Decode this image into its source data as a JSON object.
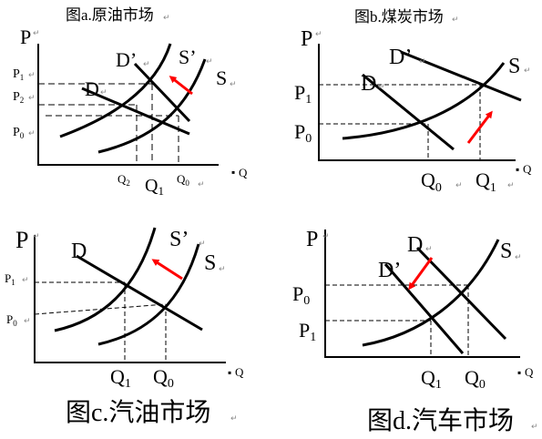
{
  "panels": {
    "a": {
      "title": "图a.原油市场",
      "p_axis": "P",
      "q_axis": "Q",
      "demand": "D",
      "demand_new": "D’",
      "supply": "S",
      "supply_new": "S’",
      "p1": "P",
      "p1_sub": "1",
      "p2": "P",
      "p2_sub": "2",
      "p0": "P",
      "p0_sub": "0",
      "q2": "Q",
      "q2_sub": "2",
      "q1": "Q",
      "q1_sub": "1",
      "q0": "Q",
      "q0_sub": "0"
    },
    "b": {
      "title": "图b.煤炭市场",
      "p_axis": "P",
      "q_axis": "Q",
      "demand": "D",
      "demand_new": "D’",
      "supply": "S",
      "p1": "P",
      "p1_sub": "1",
      "p0": "P",
      "p0_sub": "0",
      "q0": "Q",
      "q0_sub": "0",
      "q1": "Q",
      "q1_sub": "1"
    },
    "c": {
      "title": "图c.汽油市场",
      "p_axis": "P",
      "q_axis": "Q",
      "demand": "D",
      "supply": "S",
      "supply_new": "S’",
      "p1": "P",
      "p1_sub": "1",
      "p0": "P",
      "p0_sub": "0",
      "q1": "Q",
      "q1_sub": "1",
      "q0": "Q",
      "q0_sub": "0"
    },
    "d": {
      "title": "图d.汽车市场",
      "p_axis": "P",
      "q_axis": "Q",
      "demand": "D",
      "demand_new": "D’",
      "supply": "S",
      "p0": "P",
      "p0_sub": "0",
      "p1": "P",
      "p1_sub": "1",
      "q1": "Q",
      "q1_sub": "1",
      "q0": "Q",
      "q0_sub": "0"
    }
  },
  "colors": {
    "shift_arrow": "#ff0000",
    "lines": "#000000"
  }
}
